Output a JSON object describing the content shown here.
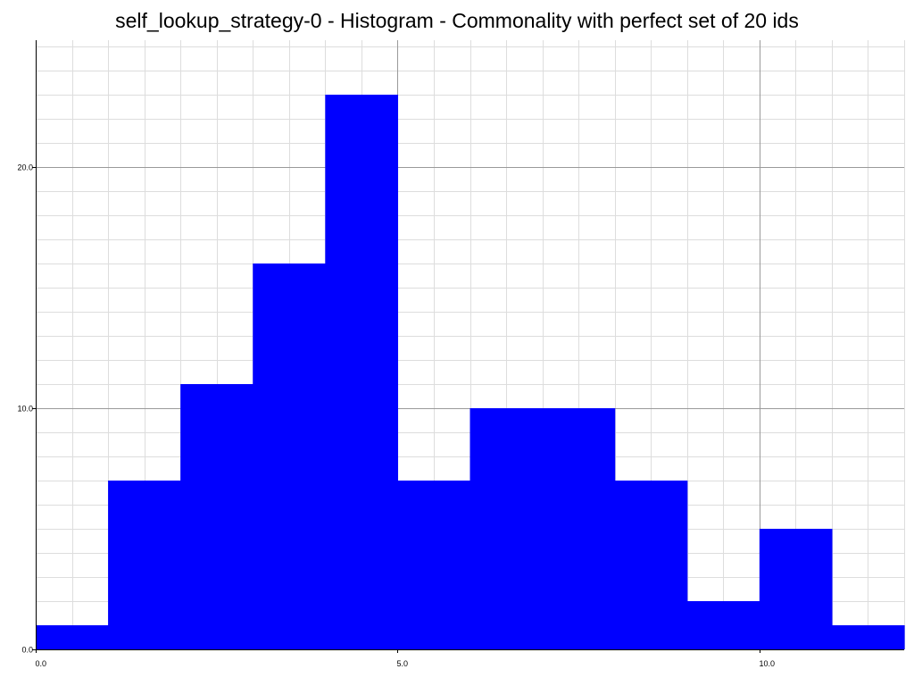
{
  "chart_data": {
    "type": "bar",
    "title": "self_lookup_strategy-0 - Histogram - Commonality with perfect set of 20 ids",
    "xlabel": "",
    "ylabel": "",
    "bins": [
      {
        "start": 0,
        "end": 1,
        "count": 1
      },
      {
        "start": 1,
        "end": 2,
        "count": 7
      },
      {
        "start": 2,
        "end": 3,
        "count": 11
      },
      {
        "start": 3,
        "end": 4,
        "count": 16
      },
      {
        "start": 4,
        "end": 5,
        "count": 23
      },
      {
        "start": 5,
        "end": 6,
        "count": 7
      },
      {
        "start": 6,
        "end": 7,
        "count": 10
      },
      {
        "start": 7,
        "end": 8,
        "count": 10
      },
      {
        "start": 8,
        "end": 9,
        "count": 7
      },
      {
        "start": 9,
        "end": 10,
        "count": 2
      },
      {
        "start": 10,
        "end": 11,
        "count": 5
      },
      {
        "start": 11,
        "end": 12,
        "count": 1
      }
    ],
    "xlim": [
      0,
      12
    ],
    "ylim": [
      0,
      25
    ],
    "x_ticks": [
      {
        "value": 0,
        "label": "0.0"
      },
      {
        "value": 5,
        "label": "5.0"
      },
      {
        "value": 10,
        "label": "10.0"
      }
    ],
    "y_ticks": [
      {
        "value": 0,
        "label": "0.0"
      },
      {
        "value": 10,
        "label": "10.0"
      },
      {
        "value": 20,
        "label": "20.0"
      }
    ],
    "minor_grid_step_x": 0.5,
    "minor_grid_step_y": 1,
    "grid": true,
    "bar_color": "#0000ff",
    "major_grid_color": "#9a9a9a",
    "minor_grid_color": "#dddddd",
    "axis_color": "#000000"
  }
}
